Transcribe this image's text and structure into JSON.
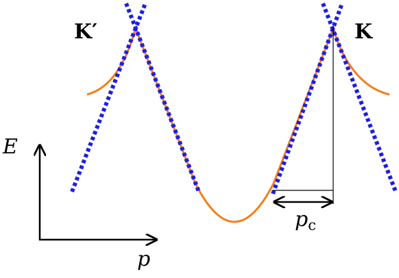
{
  "labels": {
    "k_prime": "K′",
    "k": "K",
    "energy_axis": "E",
    "momentum_axis": "p",
    "crossover_momentum": {
      "base": "p",
      "subscript": "c"
    }
  }
}
